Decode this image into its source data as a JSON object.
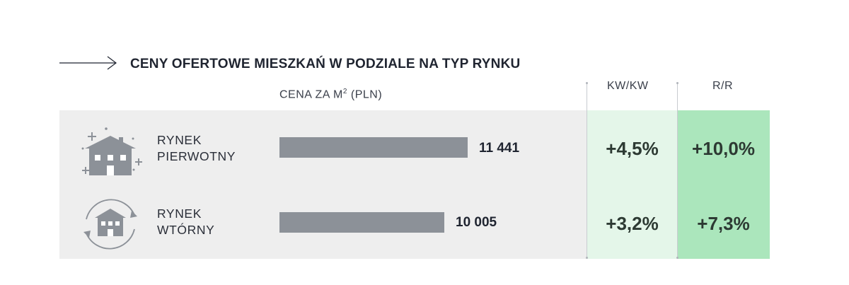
{
  "title": "CENY OFERTOWE MIESZKAŃ W PODZIALE NA TYP RYNKU",
  "columns": {
    "price_main": "CENA ZA M",
    "price_sup": "2",
    "price_unit": " (PLN)",
    "qoq": "KW/KW",
    "yoy": "R/R"
  },
  "icons": [
    "new-house-sparkle-icon",
    "house-cycle-icon"
  ],
  "colors": {
    "panel": "#eeeeee",
    "bar": "#8c9198",
    "qoq_band": "#e4f6e9",
    "yoy_band": "#abe6bc"
  },
  "chart_data": {
    "type": "bar",
    "orientation": "horizontal",
    "categories": [
      "RYNEK PIERWOTNY",
      "RYNEK WTÓRNY"
    ],
    "category_lines": [
      [
        "RYNEK",
        "PIERWOTNY"
      ],
      [
        "RYNEK",
        "WTÓRNY"
      ]
    ],
    "values": [
      11441,
      10005
    ],
    "value_labels": [
      "11 441",
      "10 005"
    ],
    "qoq_change": [
      "+4,5%",
      "+3,2%"
    ],
    "yoy_change": [
      "+10,0%",
      "+7,3%"
    ],
    "xlim": [
      0,
      11441
    ]
  }
}
